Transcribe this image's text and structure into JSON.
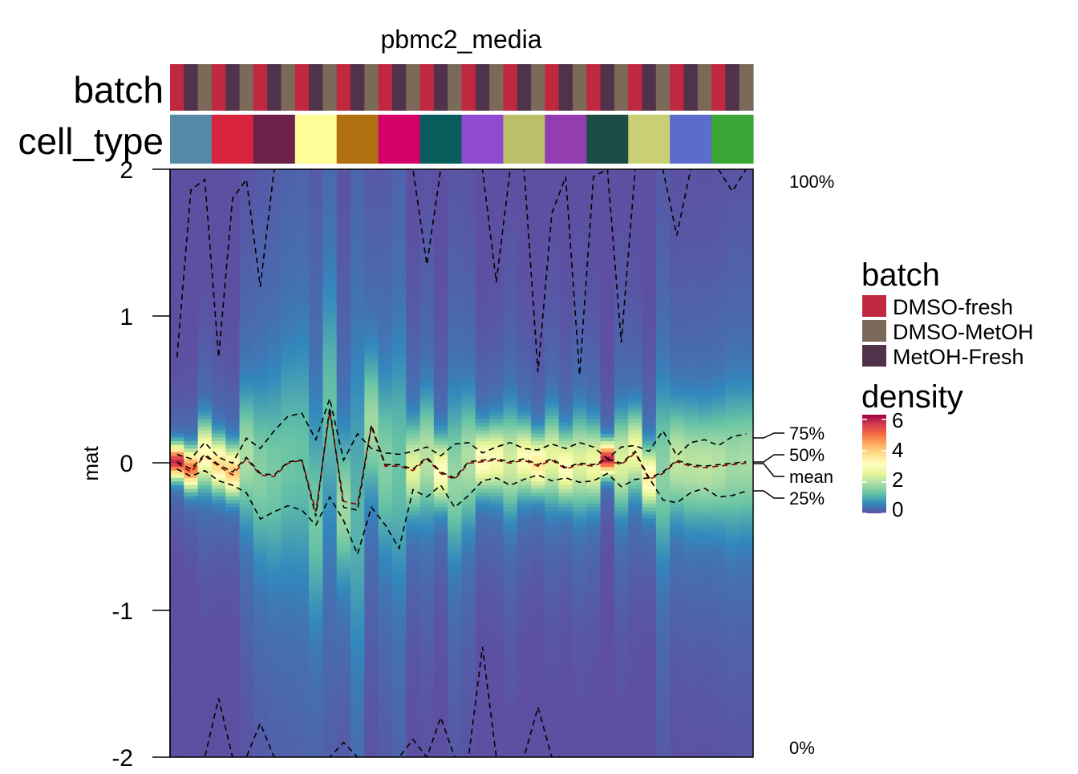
{
  "title": "pbmc2_media",
  "y_axis_label": "mat",
  "row_annotations": [
    {
      "name": "batch"
    },
    {
      "name": "cell_type"
    }
  ],
  "colors": {
    "batch": {
      "DMSO-fresh": "#C0283F",
      "DMSO-MetOH": "#7B6A5A",
      "MetOH-Fresh": "#50334A"
    },
    "cell_type": [
      "#5589A5",
      "#D9233D",
      "#6B2148",
      "#FFFD99",
      "#B0700F",
      "#D5006A",
      "#075C5C",
      "#8F4ACF",
      "#BDBF6A",
      "#933DB1",
      "#1B4D45",
      "#C9CF75",
      "#5D6BCC",
      "#3BA536"
    ],
    "density_scale": [
      "#5E4FA2",
      "#3288BD",
      "#66C2A5",
      "#ABDDA4",
      "#E6F598",
      "#FFFFBF",
      "#FEE08B",
      "#FDAE61",
      "#F46D43",
      "#D53E4F",
      "#9E0142"
    ]
  },
  "legend": {
    "batch": {
      "title": "batch",
      "items": [
        {
          "label": "DMSO-fresh",
          "color": "#C0283F"
        },
        {
          "label": "DMSO-MetOH",
          "color": "#7B6A5A"
        },
        {
          "label": "MetOH-Fresh",
          "color": "#50334A"
        }
      ]
    },
    "density": {
      "title": "density",
      "ticks": [
        "0",
        "2",
        "4",
        "6"
      ]
    }
  },
  "quantile_labels": {
    "q100": "100%",
    "q75": "75%",
    "q50": "50%",
    "mean": "mean",
    "q25": "25%",
    "q0": "0%"
  },
  "chart_data": {
    "type": "heatmap",
    "title": "pbmc2_media",
    "ylabel": "mat",
    "ylim": [
      -2,
      2
    ],
    "y_ticks": [
      "2",
      "1",
      "0",
      "-1",
      "-2"
    ],
    "n_columns": 42,
    "batch_sequence": [
      "DMSO-fresh",
      "MetOH-Fresh",
      "DMSO-MetOH"
    ],
    "cell_type_groups": 14,
    "density_range": [
      0,
      6.3
    ],
    "series": [
      {
        "name": "100%",
        "values": [
          0.72,
          1.86,
          1.93,
          0.72,
          1.8,
          1.93,
          1.2,
          2.0,
          2.0,
          2.0,
          2.0,
          2.0,
          2.0,
          2.0,
          2.0,
          2.0,
          2.0,
          2.0,
          1.35,
          2.0,
          2.0,
          2.0,
          2.0,
          1.23,
          2.0,
          2.0,
          0.62,
          1.7,
          1.95,
          0.6,
          1.95,
          2.0,
          0.82,
          2.0,
          2.0,
          2.0,
          1.55,
          2.0,
          2.0,
          2.0,
          1.85,
          2.0
        ]
      },
      {
        "name": "75%",
        "values": [
          0.06,
          0.03,
          0.14,
          0.04,
          0.0,
          0.17,
          0.1,
          0.22,
          0.32,
          0.34,
          0.16,
          0.44,
          0.02,
          0.2,
          0.1,
          0.07,
          0.06,
          0.08,
          0.11,
          0.05,
          0.13,
          0.14,
          0.07,
          0.11,
          0.14,
          0.1,
          0.09,
          0.13,
          0.1,
          0.14,
          0.11,
          0.03,
          0.11,
          0.12,
          0.08,
          0.22,
          0.05,
          0.14,
          0.16,
          0.12,
          0.18,
          0.2
        ]
      },
      {
        "name": "mean",
        "values": [
          0.0,
          -0.06,
          0.05,
          -0.02,
          -0.08,
          0.03,
          -0.08,
          -0.09,
          0.0,
          0.02,
          -0.33,
          0.35,
          -0.26,
          -0.28,
          0.25,
          -0.02,
          -0.02,
          -0.05,
          0.03,
          -0.07,
          -0.11,
          0.0,
          0.01,
          0.02,
          0.0,
          0.02,
          -0.02,
          0.02,
          -0.04,
          -0.01,
          -0.02,
          0.02,
          -0.01,
          0.07,
          -0.11,
          -0.07,
          0.01,
          -0.02,
          -0.03,
          -0.02,
          -0.01,
          0.0
        ]
      },
      {
        "name": "50%",
        "values": [
          0.01,
          -0.04,
          0.06,
          -0.01,
          -0.06,
          0.04,
          -0.07,
          -0.08,
          0.01,
          0.02,
          -0.36,
          0.38,
          -0.3,
          -0.32,
          0.26,
          -0.01,
          -0.01,
          -0.04,
          0.04,
          -0.06,
          -0.1,
          0.01,
          0.02,
          0.03,
          0.01,
          0.03,
          -0.01,
          0.03,
          -0.03,
          0.0,
          -0.01,
          0.03,
          0.0,
          0.08,
          -0.1,
          -0.06,
          0.02,
          -0.01,
          -0.02,
          -0.01,
          0.0,
          0.01
        ]
      },
      {
        "name": "25%",
        "values": [
          -0.04,
          -0.09,
          -0.05,
          -0.12,
          -0.15,
          -0.2,
          -0.38,
          -0.33,
          -0.29,
          -0.32,
          -0.42,
          -0.23,
          -0.39,
          -0.62,
          -0.3,
          -0.42,
          -0.58,
          -0.18,
          -0.23,
          -0.15,
          -0.3,
          -0.22,
          -0.12,
          -0.1,
          -0.15,
          -0.11,
          -0.08,
          -0.12,
          -0.1,
          -0.13,
          -0.12,
          -0.07,
          -0.16,
          -0.11,
          -0.1,
          -0.25,
          -0.27,
          -0.2,
          -0.17,
          -0.23,
          -0.22,
          -0.19
        ]
      },
      {
        "name": "0%",
        "values": [
          -2.0,
          -2.0,
          -2.0,
          -1.6,
          -2.0,
          -2.0,
          -1.77,
          -2.0,
          -2.0,
          -2.0,
          -2.0,
          -2.0,
          -1.9,
          -2.0,
          -2.0,
          -2.0,
          -2.0,
          -1.88,
          -2.0,
          -1.73,
          -2.0,
          -2.0,
          -1.25,
          -2.0,
          -2.0,
          -2.0,
          -1.66,
          -2.0,
          -2.0,
          -2.0,
          -2.0,
          -2.0,
          -2.0,
          -2.0,
          -2.0,
          -2.0,
          -2.0,
          -2.0,
          -2.0,
          -2.0,
          -2.0,
          -2.0
        ]
      }
    ]
  }
}
